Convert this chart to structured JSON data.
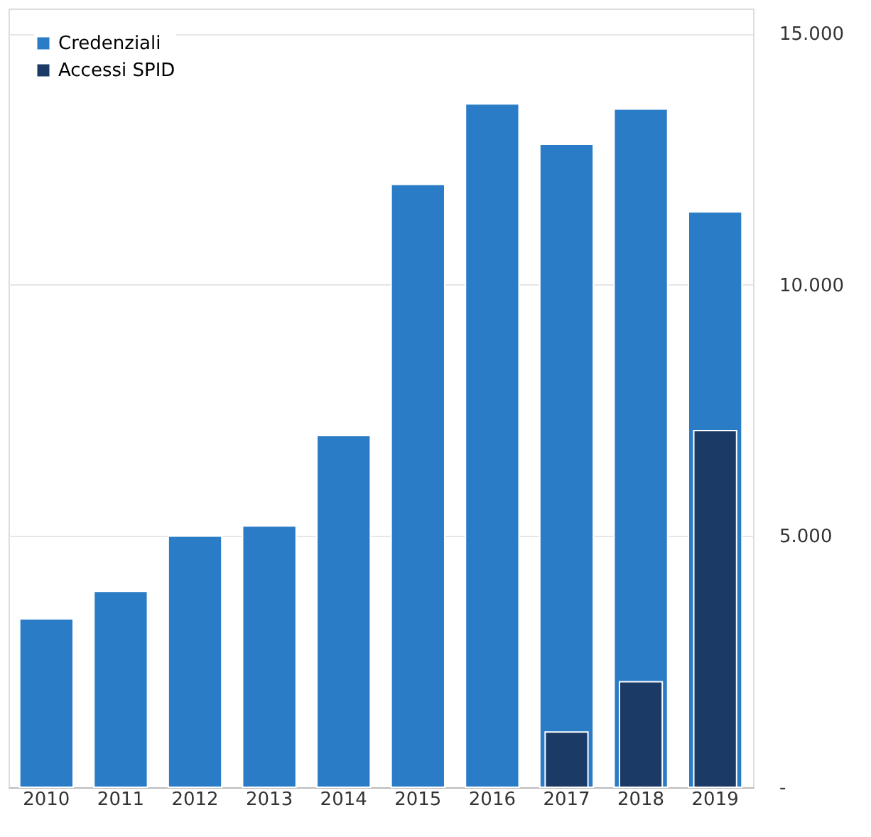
{
  "chart_data": {
    "type": "bar",
    "categories": [
      "2010",
      "2011",
      "2012",
      "2013",
      "2014",
      "2015",
      "2016",
      "2017",
      "2018",
      "2019"
    ],
    "series": [
      {
        "name": "Credenziali",
        "color": "#2a7cc6",
        "values": [
          3350,
          3900,
          5000,
          5200,
          7000,
          12000,
          13600,
          12800,
          13500,
          11450
        ]
      },
      {
        "name": "Accessi SPID",
        "color": "#1c3a66",
        "values": [
          null,
          null,
          null,
          null,
          null,
          null,
          null,
          1100,
          2100,
          7100
        ]
      }
    ],
    "ylim": [
      0,
      15500
    ],
    "yticks": [
      {
        "value": 0,
        "label": "-"
      },
      {
        "value": 5000,
        "label": "5.000"
      },
      {
        "value": 10000,
        "label": "10.000"
      },
      {
        "value": 15000,
        "label": "15.000"
      }
    ],
    "grid": "y",
    "legend": "top left"
  }
}
